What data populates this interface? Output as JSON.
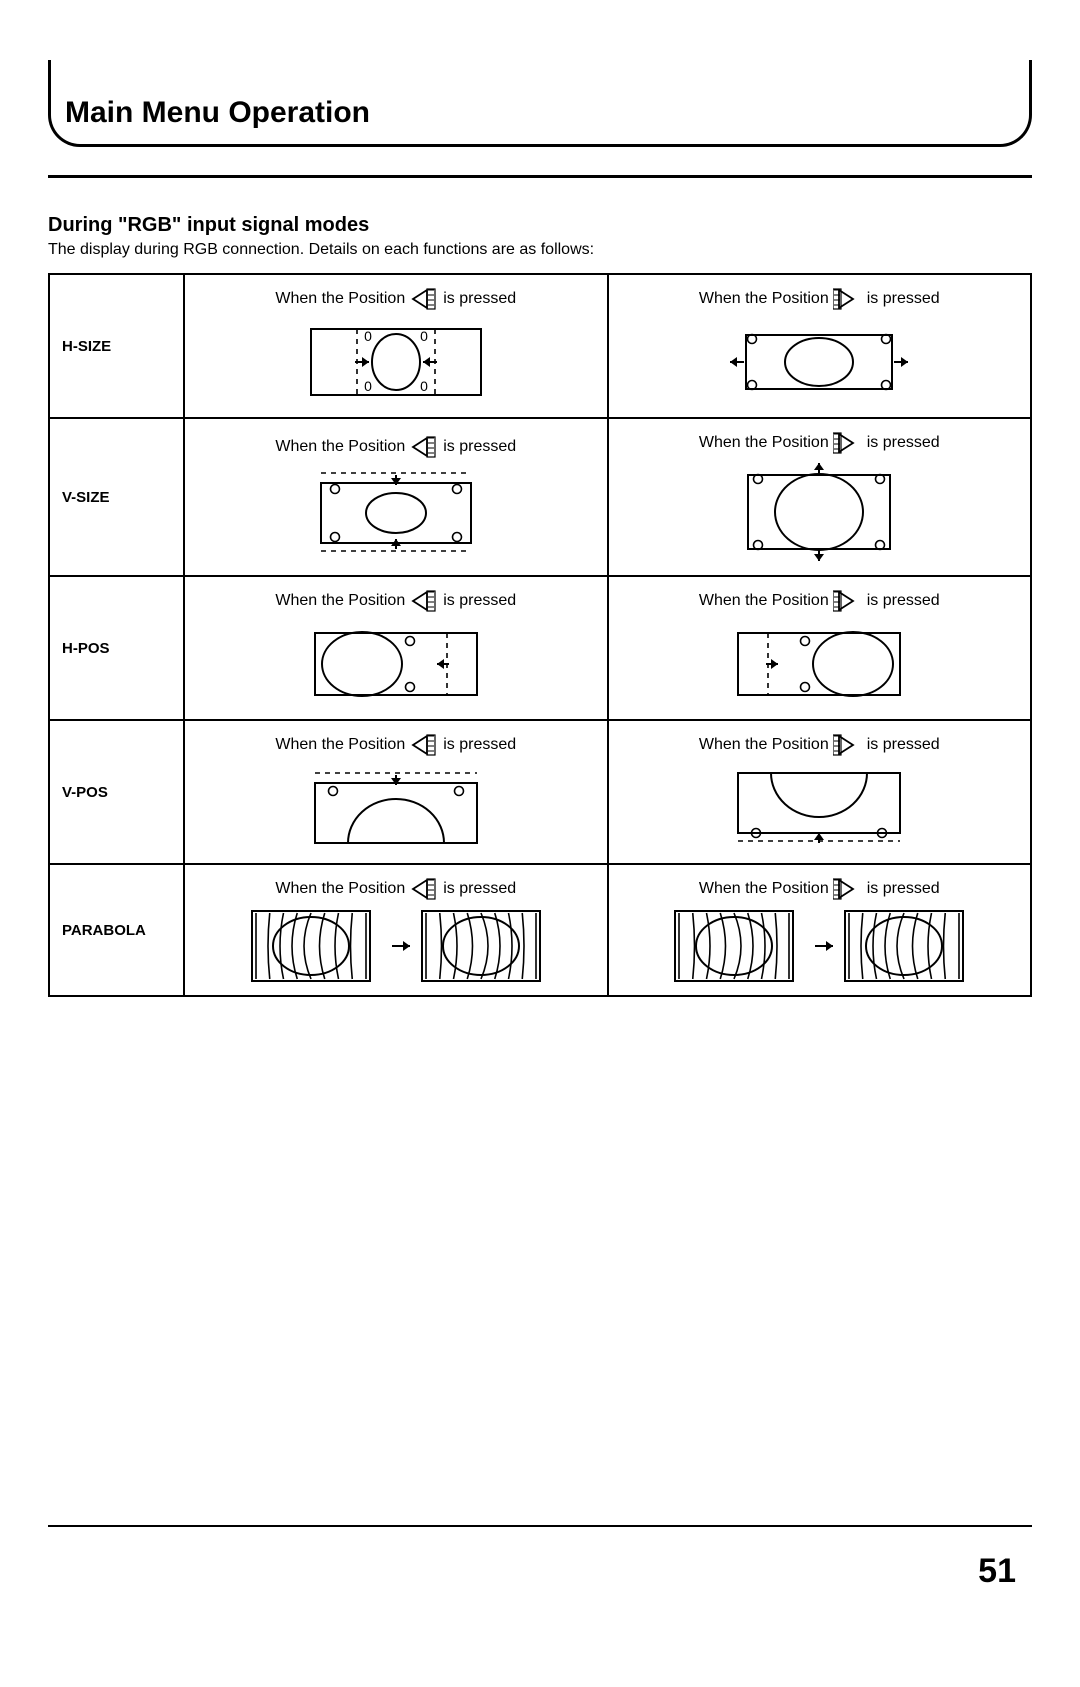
{
  "page": {
    "title": "Main Menu Operation",
    "section_heading": "During \"RGB\" input signal modes",
    "section_sub": "The display during RGB connection. Details on each functions are as follows:",
    "page_number": "51"
  },
  "caption": {
    "prefix": "When the Position",
    "suffix": "is pressed"
  },
  "rows": [
    {
      "label": "H-SIZE",
      "left_btn": "left",
      "right_btn": "right",
      "left_figure": "hsize-shrink",
      "right_figure": "hsize-expand"
    },
    {
      "label": "V-SIZE",
      "left_btn": "left",
      "right_btn": "right",
      "left_figure": "vsize-shrink",
      "right_figure": "vsize-expand"
    },
    {
      "label": "H-POS",
      "left_btn": "left",
      "right_btn": "right",
      "left_figure": "hpos-left",
      "right_figure": "hpos-right"
    },
    {
      "label": "V-POS",
      "left_btn": "left",
      "right_btn": "right",
      "left_figure": "vpos-down",
      "right_figure": "vpos-up"
    },
    {
      "label": "PARABOLA",
      "left_btn": "left",
      "right_btn": "right",
      "left_figure": "parabola-convex",
      "right_figure": "parabola-concave"
    }
  ],
  "style": {
    "stroke": "#000000",
    "stroke_w": 2,
    "dash": "5,5",
    "bg": "#ffffff",
    "diagram_w": 190,
    "diagram_h": 90,
    "parabola_w": 300,
    "parabola_h": 78
  }
}
